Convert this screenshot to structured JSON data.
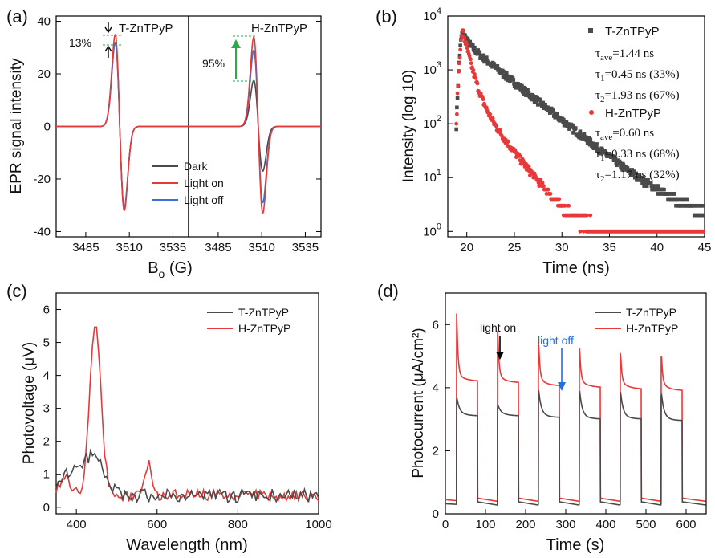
{
  "colors": {
    "dark": "#4a4a4a",
    "red": "#e8393a",
    "blue": "#3b6fd6",
    "green": "#2ea84a",
    "axis": "#000000"
  },
  "chart_data": [
    {
      "panel_label": "(a)",
      "type": "line",
      "title": "",
      "xlabel_main": "B",
      "xlabel_sub": "o",
      "xlabel_unit": " (G)",
      "ylabel": "EPR signal intensity",
      "ylim": [
        -42,
        42
      ],
      "yticks": [
        -40,
        -20,
        0,
        20,
        40
      ],
      "ytick_labels": [
        "-40",
        "-20",
        "0",
        "20",
        "40"
      ],
      "subpanels": [
        {
          "name": "T-ZnTPyP",
          "xlim": [
            3468,
            3544
          ],
          "xticks": [
            3485,
            3510,
            3535
          ],
          "xtick_labels": [
            "3485",
            "3510",
            "3535"
          ],
          "annotation": "13%",
          "series": [
            {
              "name": "Dark",
              "center": 3504.5,
              "pos_peak": 32,
              "neg_peak": -31
            },
            {
              "name": "Light on",
              "center": 3504.5,
              "pos_peak": 35,
              "neg_peak": -32
            },
            {
              "name": "Light off",
              "center": 3504.5,
              "pos_peak": 32,
              "neg_peak": -31
            }
          ]
        },
        {
          "name": "H-ZnTPyP",
          "xlim": [
            3468,
            3544
          ],
          "xticks": [
            3485,
            3510,
            3535
          ],
          "xtick_labels": [
            "3485",
            "3510",
            "3535"
          ],
          "annotation": "95%",
          "series": [
            {
              "name": "Dark",
              "center": 3508,
              "pos_peak": 17.5,
              "neg_peak": -17
            },
            {
              "name": "Light on",
              "center": 3508,
              "pos_peak": 34,
              "neg_peak": -33
            },
            {
              "name": "Light off",
              "center": 3508,
              "pos_peak": 29,
              "neg_peak": -29
            }
          ]
        }
      ],
      "legend": [
        "Dark",
        "Light on",
        "Light off"
      ]
    },
    {
      "panel_label": "(b)",
      "type": "scatter",
      "xlabel": "Time (ns)",
      "ylabel": "Intensity (log 10)",
      "xlim": [
        18,
        45
      ],
      "ylim_log10": [
        -0.1,
        4
      ],
      "xticks": [
        20,
        25,
        30,
        35,
        40,
        45
      ],
      "xtick_labels": [
        "20",
        "25",
        "30",
        "35",
        "40",
        "45"
      ],
      "ytick_exponents": [
        0,
        1,
        2,
        3,
        4
      ],
      "series": [
        {
          "name": "T-ZnTPyP",
          "peak_time": 19.6,
          "peak": 5000,
          "tau1": 0.45,
          "a1": 0.33,
          "tau2": 1.93,
          "a2": 0.67,
          "lines": [
            "T-ZnTPyP",
            "τ",
            "ave",
            "=1.44 ns",
            "τ",
            "1",
            "=0.45 ns (33%)",
            "τ",
            "2",
            "=1.93 ns (67%)"
          ]
        },
        {
          "name": "H-ZnTPyP",
          "peak_time": 19.6,
          "peak": 5000,
          "tau1": 0.33,
          "a1": 0.68,
          "tau2": 1.17,
          "a2": 0.32,
          "lines": [
            "H-ZnTPyP",
            "τ",
            "ave",
            "=0.60 ns",
            "τ",
            "1",
            "=0.33 ns (68%)",
            "τ",
            "2",
            "=1.17 ns (32%)"
          ]
        }
      ]
    },
    {
      "panel_label": "(c)",
      "type": "line",
      "xlabel": "Wavelength (nm)",
      "ylabel": "Photovoltage (μV)",
      "xlim": [
        350,
        1000
      ],
      "ylim": [
        -0.2,
        6.5
      ],
      "xticks": [
        400,
        600,
        800,
        1000
      ],
      "xtick_labels": [
        "400",
        "600",
        "800",
        "1000"
      ],
      "yticks": [
        0,
        1,
        2,
        3,
        4,
        5,
        6
      ],
      "ytick_labels": [
        "0",
        "1",
        "2",
        "3",
        "4",
        "5",
        "6"
      ],
      "series": [
        {
          "name": "T-ZnTPyP",
          "peak_x": 440,
          "peak_y": 1.5
        },
        {
          "name": "H-ZnTPyP",
          "peak_x": 447,
          "peak_y": 5.55,
          "second_peak_x": 578,
          "second_peak_y": 1.35
        }
      ]
    },
    {
      "panel_label": "(d)",
      "type": "line",
      "xlabel": "Time (s)",
      "ylabel": "Photocurrent (μA/cm²)",
      "xlim": [
        0,
        650
      ],
      "ylim": [
        0,
        7
      ],
      "xticks": [
        0,
        100,
        200,
        300,
        400,
        500,
        600
      ],
      "xtick_labels": [
        "0",
        "100",
        "200",
        "300",
        "400",
        "500",
        "600"
      ],
      "yticks": [
        0,
        2,
        4,
        6
      ],
      "ytick_labels": [
        "0",
        "2",
        "4",
        "6"
      ],
      "light_on_times": [
        28,
        130,
        232,
        334,
        436,
        538
      ],
      "pulse_width": 52,
      "annotations": {
        "light_on": "light on",
        "light_off": "light off"
      },
      "series": [
        {
          "name": "T-ZnTPyP",
          "spike": [
            3.6,
            3.35,
            3.85,
            3.85,
            3.8,
            3.75
          ],
          "plateau": [
            3.1,
            3.1,
            3.05,
            3.0,
            3.0,
            2.95
          ],
          "dark": 0.28
        },
        {
          "name": "H-ZnTPyP",
          "spike": [
            6.35,
            5.8,
            5.45,
            5.25,
            5.1,
            5.0
          ],
          "plateau": [
            4.2,
            4.15,
            4.05,
            4.0,
            3.95,
            3.9
          ],
          "dark": 0.4
        }
      ]
    }
  ]
}
